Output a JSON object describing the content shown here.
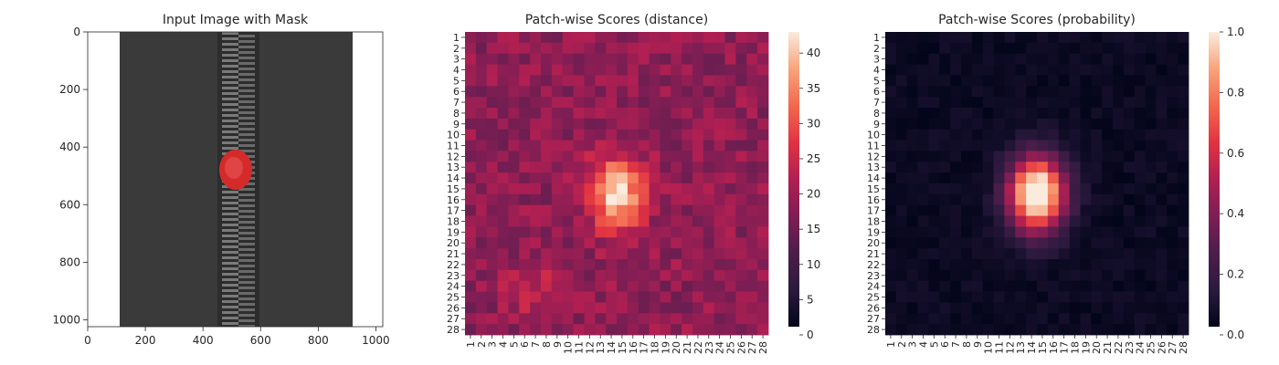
{
  "chart_data": [
    {
      "type": "image",
      "title": "Input Image with Mask",
      "xlim": [
        0,
        1024
      ],
      "ylim": [
        1024,
        0
      ],
      "xticks": [
        "0",
        "200",
        "400",
        "600",
        "800",
        "1000"
      ],
      "yticks": [
        "0",
        "200",
        "400",
        "600",
        "800",
        "1000"
      ],
      "content": "zipper photo with red mask",
      "colors": {
        "zipper": "#3a3a3a",
        "mask": "#d42a2a"
      }
    },
    {
      "type": "heatmap",
      "title": "Patch-wise Scores (distance)",
      "xticks": [
        "1",
        "2",
        "3",
        "4",
        "5",
        "6",
        "7",
        "8",
        "9",
        "10",
        "11",
        "12",
        "13",
        "14",
        "15",
        "16",
        "17",
        "18",
        "19",
        "20",
        "21",
        "22",
        "23",
        "24",
        "25",
        "26",
        "27",
        "28"
      ],
      "yticks": [
        "1",
        "2",
        "3",
        "4",
        "5",
        "6",
        "7",
        "8",
        "9",
        "10",
        "11",
        "12",
        "13",
        "14",
        "15",
        "16",
        "17",
        "18",
        "19",
        "20",
        "21",
        "22",
        "23",
        "24",
        "25",
        "26",
        "27",
        "28"
      ],
      "colorbar_ticks": [
        "0",
        "5",
        "10",
        "15",
        "20",
        "25",
        "30",
        "35",
        "40"
      ],
      "vmin": 0,
      "vmax": 43,
      "colormap": "rocket",
      "hot_center": [
        15.5,
        14.5
      ],
      "peak": 43,
      "baseline": 18
    },
    {
      "type": "heatmap",
      "title": "Patch-wise Scores (probability)",
      "xticks": [
        "1",
        "2",
        "3",
        "4",
        "5",
        "6",
        "7",
        "8",
        "9",
        "10",
        "11",
        "12",
        "13",
        "14",
        "15",
        "16",
        "17",
        "18",
        "19",
        "20",
        "21",
        "22",
        "23",
        "24",
        "25",
        "26",
        "27",
        "28"
      ],
      "yticks": [
        "1",
        "2",
        "3",
        "4",
        "5",
        "6",
        "7",
        "8",
        "9",
        "10",
        "11",
        "12",
        "13",
        "14",
        "15",
        "16",
        "17",
        "18",
        "19",
        "20",
        "21",
        "22",
        "23",
        "24",
        "25",
        "26",
        "27",
        "28"
      ],
      "colorbar_ticks": [
        "0.0",
        "0.2",
        "0.4",
        "0.6",
        "0.8",
        "1.0"
      ],
      "vmin": 0,
      "vmax": 1,
      "colormap": "rocket",
      "hot_center": [
        15.5,
        14.5
      ],
      "peak": 1.0,
      "baseline": 0.0
    }
  ]
}
